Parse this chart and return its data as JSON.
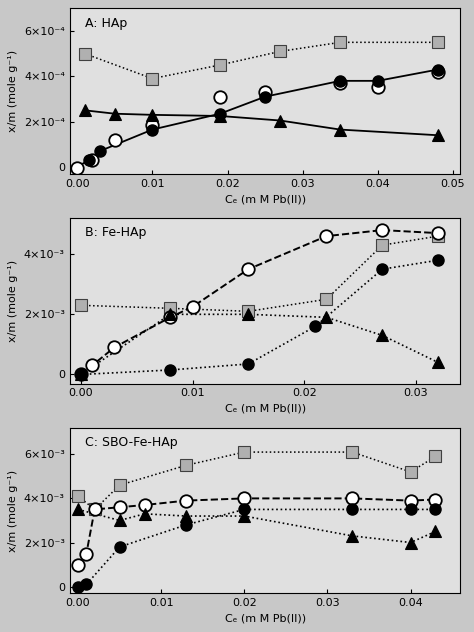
{
  "panels": [
    {
      "label": "A: HAp",
      "ylim": [
        -3e-05,
        0.0007
      ],
      "xlim": [
        -0.001,
        0.051
      ],
      "yticks": [
        0,
        0.0002,
        0.0004,
        0.0006
      ],
      "ytick_labels": [
        "0",
        "2×10⁻⁴",
        "4×10⁻⁴",
        "6×10⁻⁴"
      ],
      "xticks": [
        0.0,
        0.01,
        0.02,
        0.03,
        0.04,
        0.05
      ],
      "xtick_labels": [
        "0.00",
        "0.01",
        "0.02",
        "0.03",
        "0.04",
        "0.05"
      ],
      "ylabel": "x/m (mole g⁻¹)",
      "xlabel": "Cₑ (m M Pb(II))",
      "open_circles_x": [
        0.0,
        0.002,
        0.005,
        0.01,
        0.019,
        0.025,
        0.035,
        0.04,
        0.048
      ],
      "open_circles_y": [
        -5e-06,
        3e-05,
        0.00012,
        0.000185,
        0.00031,
        0.00033,
        0.00037,
        0.000355,
        0.00042
      ],
      "solid_circles_x": [
        0.0015,
        0.003,
        0.01,
        0.019,
        0.025,
        0.035,
        0.04,
        0.048
      ],
      "solid_circles_y": [
        3e-05,
        7e-05,
        0.000165,
        0.000235,
        0.00031,
        0.00038,
        0.00038,
        0.00043
      ],
      "squares_x": [
        0.001,
        0.01,
        0.019,
        0.027,
        0.035,
        0.048
      ],
      "squares_y": [
        0.0005,
        0.00039,
        0.00045,
        0.00051,
        0.00055,
        0.00055
      ],
      "triangles_x": [
        0.001,
        0.005,
        0.01,
        0.019,
        0.027,
        0.035,
        0.048
      ],
      "triangles_y": [
        0.00025,
        0.000235,
        0.00023,
        0.000225,
        0.000205,
        0.000165,
        0.00014
      ],
      "solid_line_x": [
        -0.001,
        0.0,
        0.0015,
        0.003,
        0.01,
        0.019,
        0.025,
        0.035,
        0.04,
        0.048
      ],
      "solid_line_y": [
        -1e-05,
        0.0,
        3e-05,
        7e-05,
        0.000165,
        0.000235,
        0.00031,
        0.00038,
        0.00038,
        0.00043
      ],
      "dotted_line_x": [
        0.001,
        0.005,
        0.01,
        0.019,
        0.027,
        0.035,
        0.048
      ],
      "dotted_line_y": [
        0.00025,
        0.000235,
        0.00023,
        0.000225,
        0.000205,
        0.000165,
        0.00014
      ],
      "squares_dotted_x": [
        0.001,
        0.01,
        0.019,
        0.027,
        0.035,
        0.048
      ],
      "squares_dotted_y": [
        0.0005,
        0.00039,
        0.00045,
        0.00051,
        0.00055,
        0.00055
      ],
      "line_style": "solid_and_dotted"
    },
    {
      "label": "B: Fe-HAp",
      "ylim": [
        -0.0003,
        0.0052
      ],
      "xlim": [
        -0.001,
        0.034
      ],
      "yticks": [
        0,
        0.002,
        0.004
      ],
      "ytick_labels": [
        "0",
        "2×10⁻³",
        "4×10⁻³"
      ],
      "xticks": [
        0.0,
        0.01,
        0.02,
        0.03
      ],
      "xtick_labels": [
        "0.00",
        "0.01",
        "0.02",
        "0.03"
      ],
      "ylabel": "x/m (mole g⁻¹)",
      "xlabel": "Cₑ (m M Pb(II))",
      "open_circles_x": [
        0.0,
        0.001,
        0.003,
        0.008,
        0.01,
        0.015,
        0.022,
        0.027,
        0.032
      ],
      "open_circles_y": [
        0.0,
        0.0003,
        0.0009,
        0.0019,
        0.00225,
        0.0035,
        0.0046,
        0.0048,
        0.0047
      ],
      "solid_circles_x": [
        0.0,
        0.008,
        0.015,
        0.021,
        0.027,
        0.032
      ],
      "solid_circles_y": [
        0.0,
        0.00015,
        0.00035,
        0.0016,
        0.0035,
        0.0038
      ],
      "squares_x": [
        0.0,
        0.008,
        0.015,
        0.022,
        0.027,
        0.032
      ],
      "squares_y": [
        0.0023,
        0.0022,
        0.0021,
        0.0025,
        0.0043,
        0.0046
      ],
      "triangles_x": [
        0.0,
        0.008,
        0.015,
        0.022,
        0.027,
        0.032
      ],
      "triangles_y": [
        0.0,
        0.002,
        0.002,
        0.0019,
        0.0013,
        0.0004
      ],
      "dashed_line_x": [
        0.0,
        0.001,
        0.003,
        0.008,
        0.01,
        0.015,
        0.022,
        0.027,
        0.032
      ],
      "dashed_line_y": [
        0.0,
        0.0003,
        0.0009,
        0.0019,
        0.00225,
        0.0035,
        0.0046,
        0.0048,
        0.0047
      ],
      "dotted_solid_x": [
        0.0,
        0.008,
        0.015,
        0.021,
        0.027,
        0.032
      ],
      "dotted_solid_y": [
        0.0,
        0.00015,
        0.00035,
        0.0016,
        0.0035,
        0.0038
      ],
      "dotted_tri_x": [
        0.0,
        0.008,
        0.015,
        0.022,
        0.027,
        0.032
      ],
      "dotted_tri_y": [
        0.0,
        0.002,
        0.002,
        0.0019,
        0.0013,
        0.0004
      ],
      "squares_dotted_x": [
        0.0,
        0.008,
        0.015,
        0.022,
        0.027,
        0.032
      ],
      "squares_dotted_y": [
        0.0023,
        0.0022,
        0.0021,
        0.0025,
        0.0043,
        0.0046
      ],
      "line_style": "dashed_and_dotted"
    },
    {
      "label": "C: SBO-Fe-HAp",
      "ylim": [
        -0.0003,
        0.0072
      ],
      "xlim": [
        -0.001,
        0.046
      ],
      "yticks": [
        0,
        0.002,
        0.004,
        0.006
      ],
      "ytick_labels": [
        "0",
        "2×10⁻³",
        "4×10⁻³",
        "6×10⁻³"
      ],
      "xticks": [
        0.0,
        0.01,
        0.02,
        0.03,
        0.04
      ],
      "xtick_labels": [
        "0.00",
        "0.01",
        "0.02",
        "0.03",
        "0.04"
      ],
      "ylabel": "x/m (mole g⁻¹)",
      "xlabel": "Cₑ (m M Pb(II))",
      "open_circles_x": [
        0.0,
        0.001,
        0.002,
        0.005,
        0.008,
        0.013,
        0.02,
        0.033,
        0.04,
        0.043
      ],
      "open_circles_y": [
        0.001,
        0.0015,
        0.0035,
        0.0036,
        0.0037,
        0.0039,
        0.004,
        0.004,
        0.0039,
        0.00395
      ],
      "solid_circles_x": [
        0.0,
        0.001,
        0.005,
        0.013,
        0.02,
        0.033,
        0.04,
        0.043
      ],
      "solid_circles_y": [
        0.0,
        0.0001,
        0.0018,
        0.0028,
        0.0035,
        0.0035,
        0.0035,
        0.0035
      ],
      "squares_x": [
        0.0,
        0.002,
        0.005,
        0.013,
        0.02,
        0.033,
        0.04,
        0.043
      ],
      "squares_y": [
        0.0041,
        0.0035,
        0.0046,
        0.0055,
        0.0061,
        0.0061,
        0.0052,
        0.0059
      ],
      "triangles_x": [
        0.0,
        0.005,
        0.008,
        0.013,
        0.02,
        0.033,
        0.04,
        0.043
      ],
      "triangles_y": [
        0.0035,
        0.003,
        0.0033,
        0.0032,
        0.0032,
        0.0023,
        0.002,
        0.0025
      ],
      "dashed_line_x": [
        0.0,
        0.001,
        0.002,
        0.005,
        0.008,
        0.013,
        0.02,
        0.033,
        0.04,
        0.043
      ],
      "dashed_line_y": [
        0.001,
        0.0015,
        0.0035,
        0.0036,
        0.0037,
        0.0039,
        0.004,
        0.004,
        0.0039,
        0.00395
      ],
      "dotted_solid_x": [
        0.0,
        0.001,
        0.005,
        0.013,
        0.02,
        0.033,
        0.04,
        0.043
      ],
      "dotted_solid_y": [
        0.0,
        0.0001,
        0.0018,
        0.0028,
        0.0035,
        0.0035,
        0.0035,
        0.0035
      ],
      "dotted_tri_x": [
        0.0,
        0.005,
        0.008,
        0.013,
        0.02,
        0.033,
        0.04,
        0.043
      ],
      "dotted_tri_y": [
        0.0035,
        0.003,
        0.0033,
        0.0032,
        0.0032,
        0.0023,
        0.002,
        0.0025
      ],
      "squares_dotted_x": [
        0.0,
        0.002,
        0.005,
        0.013,
        0.02,
        0.033,
        0.04,
        0.043
      ],
      "squares_dotted_y": [
        0.0041,
        0.0035,
        0.0046,
        0.0055,
        0.0061,
        0.0061,
        0.0052,
        0.0059
      ],
      "line_style": "dashed_and_dotted"
    }
  ],
  "fig_bg": "#c8c8c8",
  "plot_bg": "#e0e0e0",
  "square_facecolor": "#b0b0b0",
  "square_edgecolor": "#404040"
}
